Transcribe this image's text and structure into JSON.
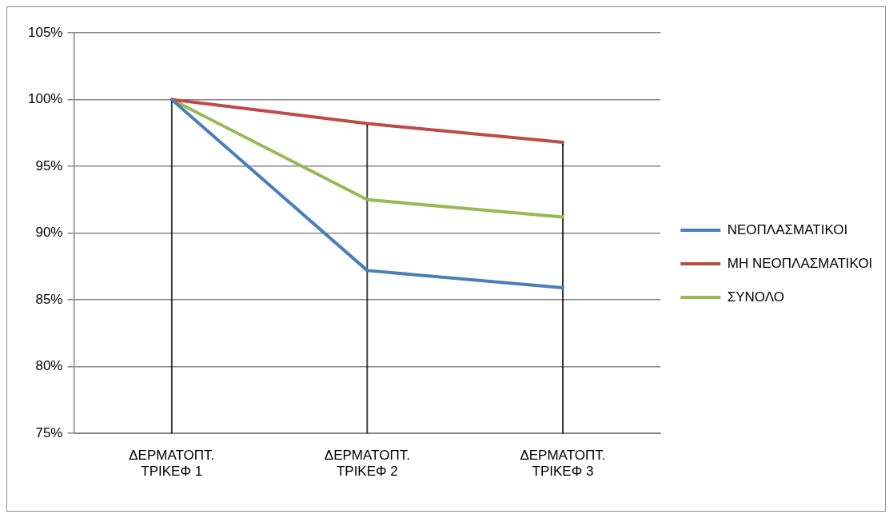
{
  "chart_data": {
    "type": "line",
    "categories": [
      "ΔΕΡΜΑΤΟΠΤ. ΤΡΙΚΕΦ 1",
      "ΔΕΡΜΑΤΟΠΤ. ΤΡΙΚΕΦ 2",
      "ΔΕΡΜΑΤΟΠΤ. ΤΡΙΚΕΦ 3"
    ],
    "series": [
      {
        "name": "ΝΕΟΠΛΑΣΜΑΤΙΚΟΙ",
        "color": "#4a7ebb",
        "values": [
          100,
          87.2,
          85.9
        ]
      },
      {
        "name": "ΜΗ ΝΕΟΠΛΑΣΜΑΤΙΚΟΙ",
        "color": "#be4b48",
        "values": [
          100,
          98.2,
          96.8
        ]
      },
      {
        "name": "ΣΥΝΟΛΟ",
        "color": "#98b954",
        "values": [
          100,
          92.5,
          91.2
        ]
      },
      {
        "type": "bar",
        "color": "#000000",
        "values": [
          100,
          98.2,
          96.8
        ]
      }
    ],
    "ylim": [
      75,
      105
    ],
    "yticks": [
      {
        "value": 75,
        "label": "75%"
      },
      {
        "value": 80,
        "label": "80%"
      },
      {
        "value": 85,
        "label": "85%"
      },
      {
        "value": 90,
        "label": "90%"
      },
      {
        "value": 95,
        "label": "95%"
      },
      {
        "value": 100,
        "label": "100%"
      },
      {
        "value": 105,
        "label": "105%"
      }
    ],
    "grid": "y",
    "legend": "right",
    "marker": "none",
    "line_style": "solid"
  }
}
